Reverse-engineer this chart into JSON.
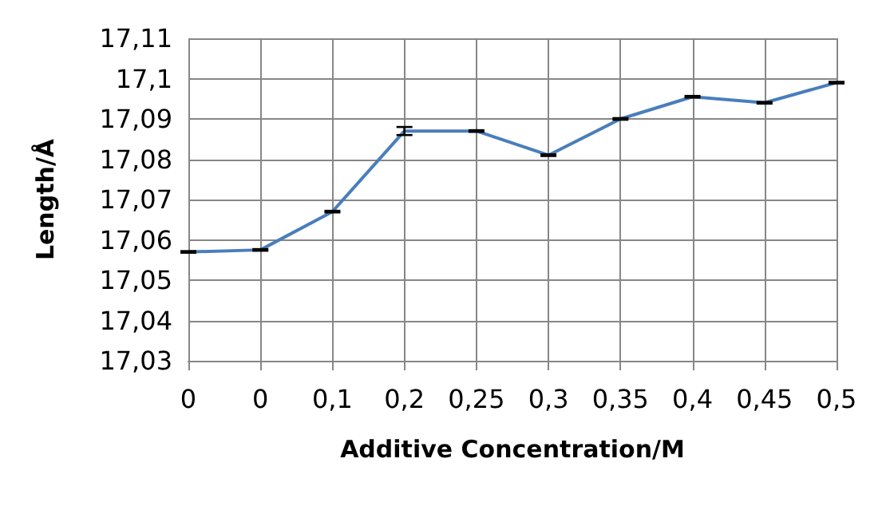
{
  "chart_data": {
    "type": "line",
    "xlabel": "Additive Concentration/M",
    "ylabel": "Length/Å",
    "categories": [
      "0",
      "0",
      "0,1",
      "0,2",
      "0,25",
      "0,3",
      "0,35",
      "0,4",
      "0,45",
      "0,5"
    ],
    "series": [
      {
        "color": "#4a7ebb",
        "values": [
          17.057,
          17.0575,
          17.067,
          17.087,
          17.087,
          17.081,
          17.09,
          17.0955,
          17.094,
          17.099
        ],
        "errors": [
          0.0002,
          0.0002,
          0.0002,
          0.001,
          0.0002,
          0.0002,
          0.0002,
          0.0002,
          0.0002,
          0.0002
        ]
      }
    ],
    "ylim": [
      17.03,
      17.11
    ],
    "yticks": [
      {
        "value": 17.03,
        "label": "17,03"
      },
      {
        "value": 17.04,
        "label": "17,04"
      },
      {
        "value": 17.05,
        "label": "17,05"
      },
      {
        "value": 17.06,
        "label": "17,06"
      },
      {
        "value": 17.07,
        "label": "17,07"
      },
      {
        "value": 17.08,
        "label": "17,08"
      },
      {
        "value": 17.09,
        "label": "17,09"
      },
      {
        "value": 17.1,
        "label": "17,1"
      },
      {
        "value": 17.11,
        "label": "17,11"
      }
    ],
    "grid": true,
    "marker": "none",
    "line_style": "solid"
  }
}
